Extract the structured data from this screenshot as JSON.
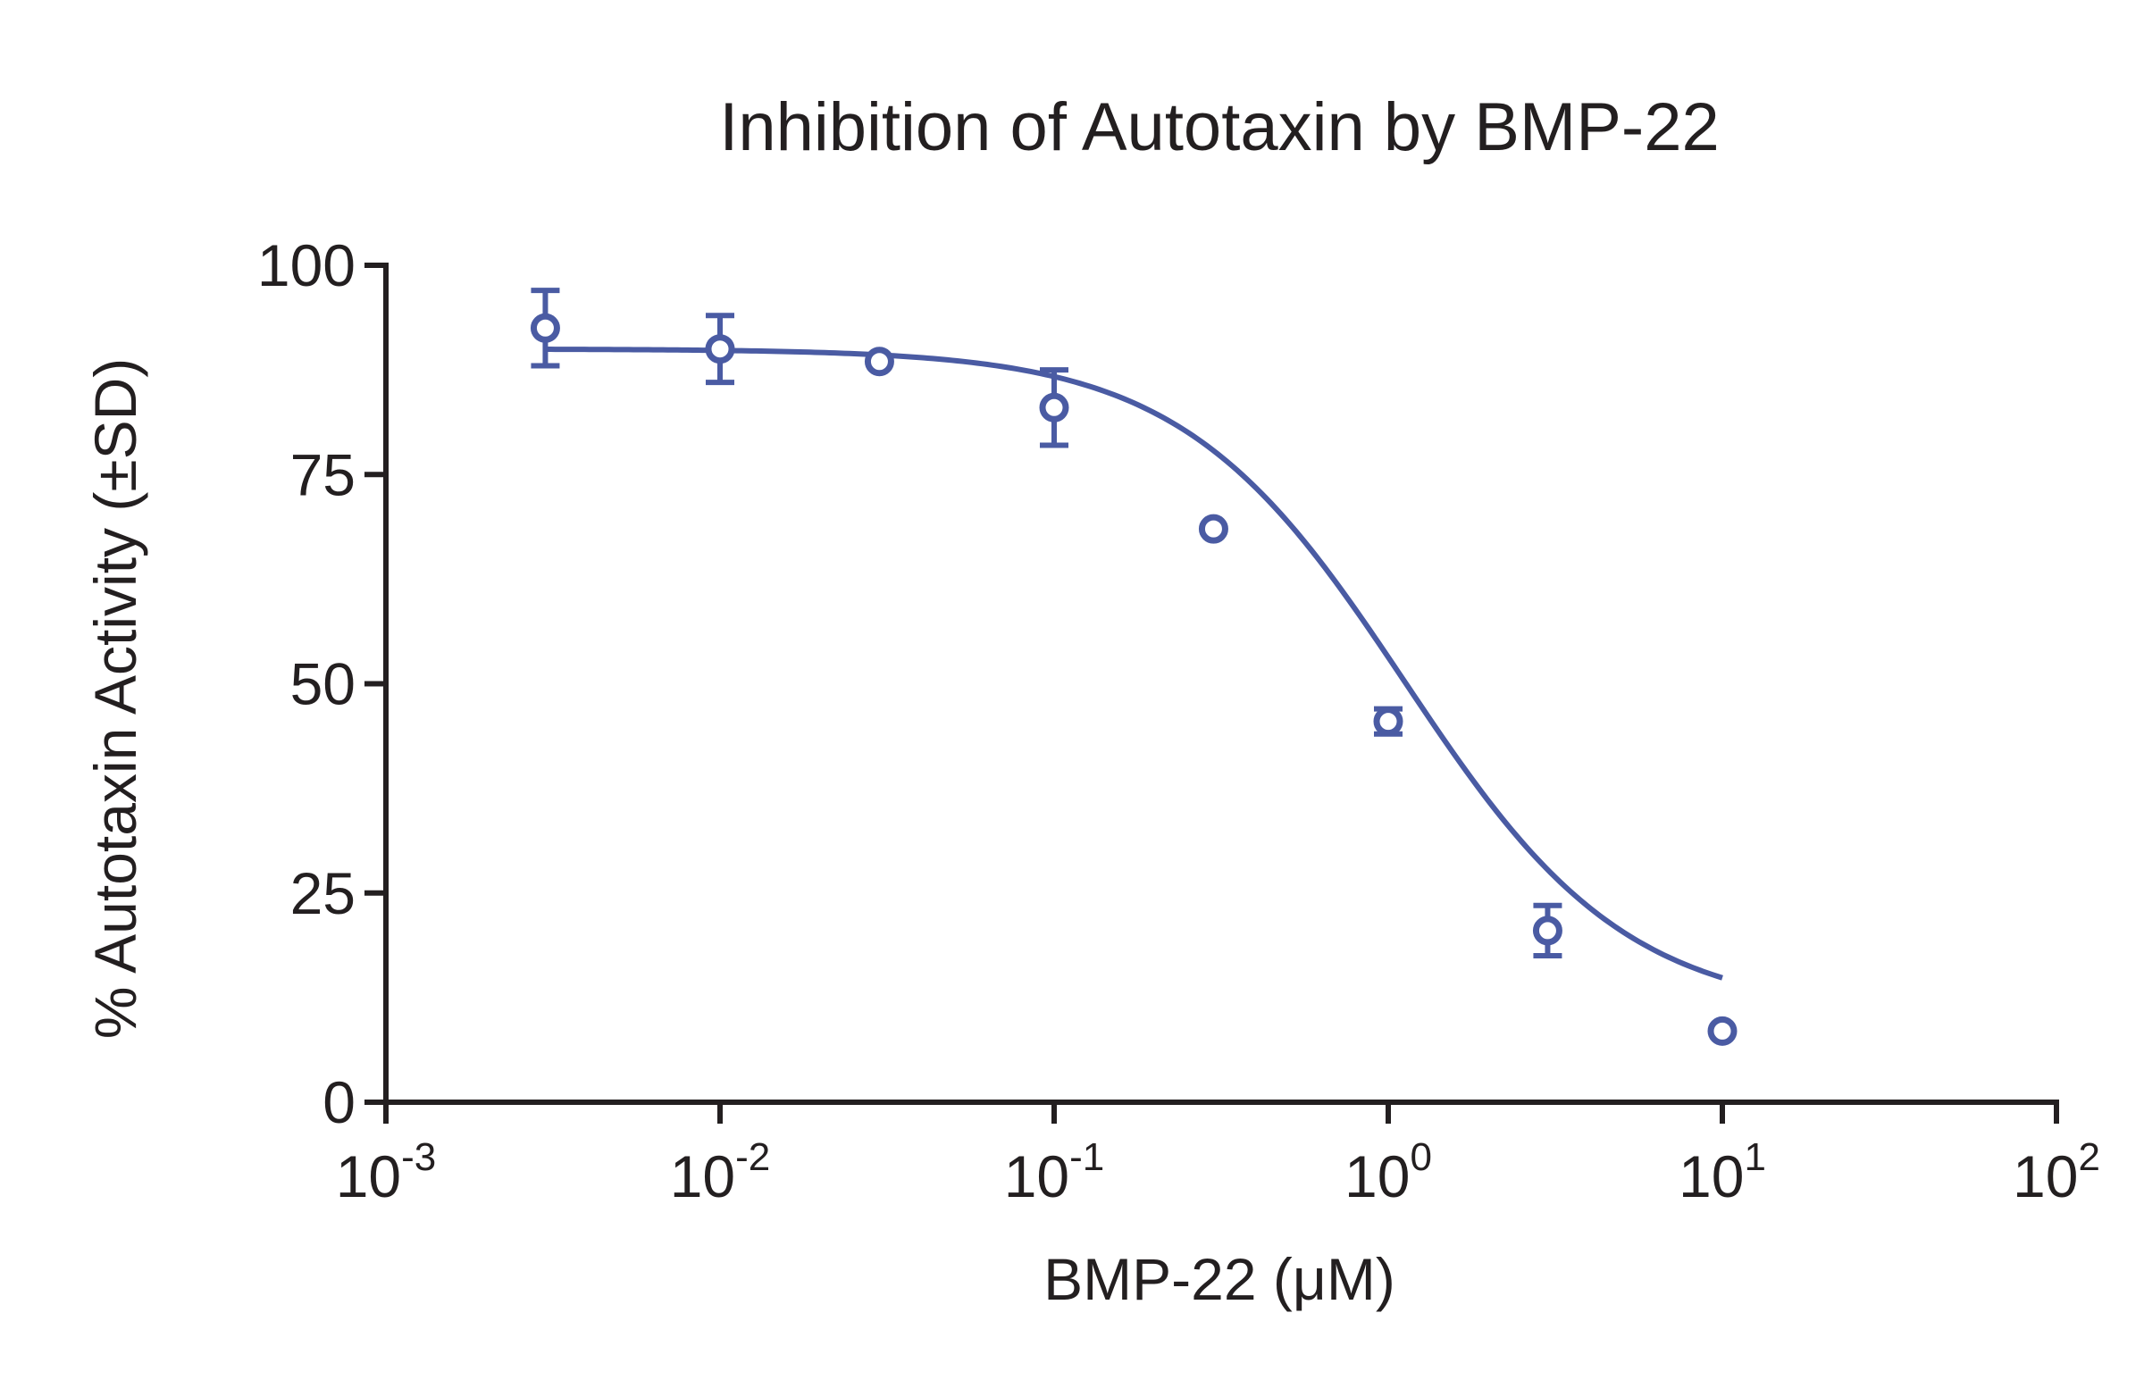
{
  "chart_data": {
    "type": "scatter",
    "title": "Inhibition of Autotaxin by BMP-22",
    "xlabel": "BMP-22 (μM)",
    "ylabel": "% Autotaxin Activity (±SD)",
    "x_scale": "log",
    "xlim": [
      0.001,
      100
    ],
    "ylim": [
      0,
      100
    ],
    "x_ticks": [
      {
        "value": 0.001,
        "base": "10",
        "exp": "-3"
      },
      {
        "value": 0.01,
        "base": "10",
        "exp": "-2"
      },
      {
        "value": 0.1,
        "base": "10",
        "exp": "-1"
      },
      {
        "value": 1,
        "base": "10",
        "exp": "0"
      },
      {
        "value": 10,
        "base": "10",
        "exp": "1"
      },
      {
        "value": 100,
        "base": "10",
        "exp": "2"
      }
    ],
    "y_ticks": [
      {
        "value": 0,
        "label": "0"
      },
      {
        "value": 25,
        "label": "25"
      },
      {
        "value": 50,
        "label": "50"
      },
      {
        "value": 75,
        "label": "75"
      },
      {
        "value": 100,
        "label": "100"
      }
    ],
    "grid": false,
    "color": "#4a5ba3",
    "points": [
      {
        "x": 0.003,
        "y": 92.5,
        "sd": 4.5
      },
      {
        "x": 0.01,
        "y": 90.0,
        "sd": 4.0
      },
      {
        "x": 0.03,
        "y": 88.5,
        "sd": 0.0
      },
      {
        "x": 0.1,
        "y": 83.0,
        "sd": 4.5
      },
      {
        "x": 0.3,
        "y": 68.5,
        "sd": 0.0
      },
      {
        "x": 1.0,
        "y": 45.5,
        "sd": 1.5
      },
      {
        "x": 3.0,
        "y": 20.5,
        "sd": 3.0
      },
      {
        "x": 10.0,
        "y": 8.5,
        "sd": 0.0
      }
    ],
    "fit": {
      "model": "four-parameter logistic",
      "top": 90,
      "bottom": 10.5,
      "ic50": 1.12,
      "hill_slope": 1.3,
      "x_range": [
        0.003,
        10
      ]
    }
  }
}
